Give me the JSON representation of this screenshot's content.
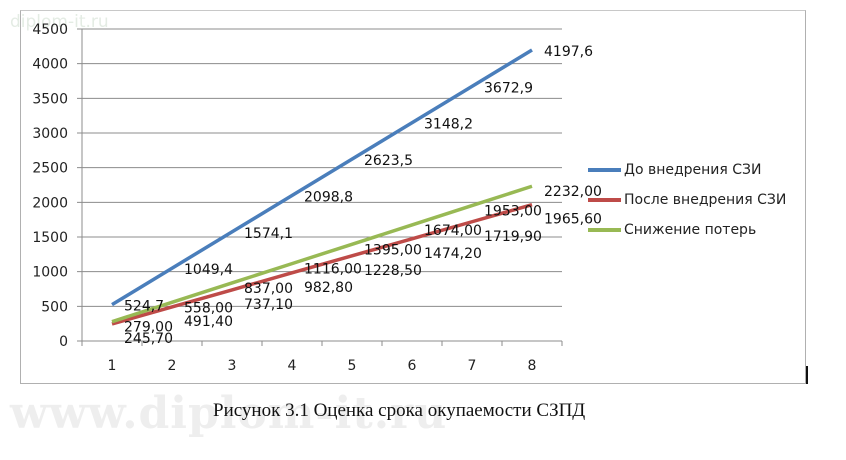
{
  "chart_data": {
    "type": "line",
    "title": "",
    "xlabel": "",
    "ylabel": "",
    "categories": [
      "1",
      "2",
      "3",
      "4",
      "5",
      "6",
      "7",
      "8"
    ],
    "ylim": [
      0,
      4500
    ],
    "yticks": [
      "0",
      "500",
      "1000",
      "1500",
      "2000",
      "2500",
      "3000",
      "3500",
      "4000",
      "4500"
    ],
    "grid": true,
    "legend_position": "right",
    "series": [
      {
        "name": "До внедрения СЗИ",
        "color": "#4a7ebb",
        "values": [
          524.7,
          1049.4,
          1574.1,
          2098.8,
          2623.5,
          3148.2,
          3672.9,
          4197.6
        ],
        "labels": [
          "524,7",
          "1049,4",
          "1574,1",
          "2098,8",
          "2623,5",
          "3148,2",
          "3672,9",
          "4197,6"
        ]
      },
      {
        "name": "После внедрения СЗИ",
        "color": "#be4b48",
        "values": [
          245.7,
          491.4,
          737.1,
          982.8,
          1228.5,
          1474.2,
          1719.9,
          1965.6
        ],
        "labels": [
          "245,70",
          "491,40",
          "737,10",
          "982,80",
          "1228,50",
          "1474,20",
          "1719,90",
          "1965,60"
        ]
      },
      {
        "name": "Снижение потерь",
        "color": "#98b954",
        "values": [
          279.0,
          558.0,
          837.0,
          1116.0,
          1395.0,
          1674.0,
          1953.0,
          2232.0
        ],
        "labels": [
          "279,00",
          "558,00",
          "837,00",
          "1116,00",
          "1395,00",
          "1674,00",
          "1953,00",
          "2232,00"
        ]
      }
    ]
  },
  "legend": {
    "items": [
      {
        "label": "До внедрения СЗИ",
        "color": "#4a7ebb"
      },
      {
        "label": "После внедрения СЗИ",
        "color": "#be4b48"
      },
      {
        "label": "Снижение потерь",
        "color": "#98b954"
      }
    ]
  },
  "caption": "Рисунок 3.1 Оценка срока окупаемости СЗПД",
  "watermark": {
    "top": "diplom-it.ru",
    "bottom": "www.diplom-it.ru"
  }
}
